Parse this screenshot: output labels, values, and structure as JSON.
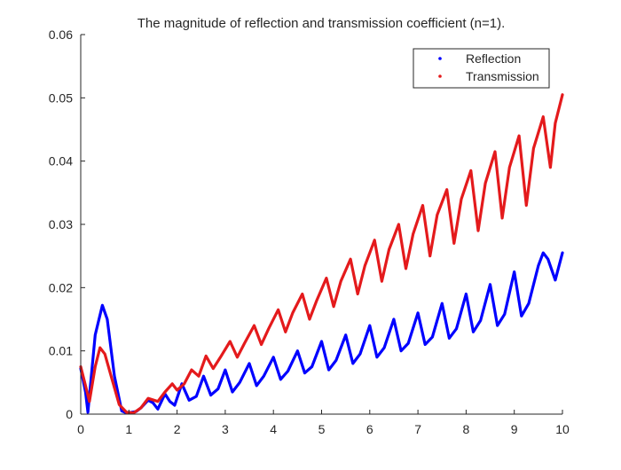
{
  "chart_data": {
    "type": "line",
    "title": "The magnitude of reflection and transmission coefficient (n=1).",
    "xlabel": "",
    "ylabel": "",
    "xlim": [
      0,
      10
    ],
    "ylim": [
      0,
      0.06
    ],
    "x_ticks": [
      "0",
      "1",
      "2",
      "3",
      "4",
      "5",
      "6",
      "7",
      "8",
      "9",
      "10"
    ],
    "y_ticks": [
      "0",
      "0.01",
      "0.02",
      "0.03",
      "0.04",
      "0.05",
      "0.06"
    ],
    "grid": false,
    "legend_position": "top-right",
    "series": [
      {
        "name": "Reflection",
        "color": "#0000ff",
        "points": [
          [
            0.0,
            0.0072
          ],
          [
            0.1,
            0.0035
          ],
          [
            0.15,
            0.0003
          ],
          [
            0.2,
            0.0045
          ],
          [
            0.3,
            0.0125
          ],
          [
            0.45,
            0.0172
          ],
          [
            0.55,
            0.015
          ],
          [
            0.7,
            0.006
          ],
          [
            0.85,
            0.0005
          ],
          [
            0.95,
            0.0002
          ],
          [
            1.05,
            0.0003
          ],
          [
            1.15,
            0.0004
          ],
          [
            1.25,
            0.001
          ],
          [
            1.4,
            0.0022
          ],
          [
            1.5,
            0.0018
          ],
          [
            1.6,
            0.0008
          ],
          [
            1.75,
            0.0032
          ],
          [
            1.85,
            0.002
          ],
          [
            1.95,
            0.0014
          ],
          [
            2.1,
            0.0048
          ],
          [
            2.25,
            0.0022
          ],
          [
            2.4,
            0.0028
          ],
          [
            2.55,
            0.006
          ],
          [
            2.7,
            0.003
          ],
          [
            2.85,
            0.004
          ],
          [
            3.0,
            0.007
          ],
          [
            3.15,
            0.0035
          ],
          [
            3.3,
            0.005
          ],
          [
            3.5,
            0.008
          ],
          [
            3.65,
            0.0045
          ],
          [
            3.8,
            0.006
          ],
          [
            4.0,
            0.009
          ],
          [
            4.15,
            0.0055
          ],
          [
            4.3,
            0.0068
          ],
          [
            4.5,
            0.01
          ],
          [
            4.65,
            0.0065
          ],
          [
            4.8,
            0.0075
          ],
          [
            5.0,
            0.0115
          ],
          [
            5.15,
            0.007
          ],
          [
            5.3,
            0.0085
          ],
          [
            5.5,
            0.0125
          ],
          [
            5.65,
            0.008
          ],
          [
            5.8,
            0.0095
          ],
          [
            6.0,
            0.014
          ],
          [
            6.15,
            0.009
          ],
          [
            6.3,
            0.0105
          ],
          [
            6.5,
            0.015
          ],
          [
            6.65,
            0.01
          ],
          [
            6.8,
            0.0112
          ],
          [
            7.0,
            0.016
          ],
          [
            7.15,
            0.011
          ],
          [
            7.3,
            0.0122
          ],
          [
            7.5,
            0.0175
          ],
          [
            7.65,
            0.012
          ],
          [
            7.8,
            0.0135
          ],
          [
            8.0,
            0.019
          ],
          [
            8.15,
            0.013
          ],
          [
            8.3,
            0.0148
          ],
          [
            8.5,
            0.0205
          ],
          [
            8.65,
            0.014
          ],
          [
            8.8,
            0.0158
          ],
          [
            9.0,
            0.0225
          ],
          [
            9.15,
            0.0155
          ],
          [
            9.3,
            0.0175
          ],
          [
            9.5,
            0.0235
          ],
          [
            9.6,
            0.0255
          ],
          [
            9.7,
            0.0245
          ],
          [
            9.85,
            0.0212
          ],
          [
            10.0,
            0.0255
          ]
        ]
      },
      {
        "name": "Transmission",
        "color": "#e41a1c",
        "points": [
          [
            0.0,
            0.0075
          ],
          [
            0.1,
            0.0045
          ],
          [
            0.18,
            0.002
          ],
          [
            0.3,
            0.0075
          ],
          [
            0.4,
            0.0105
          ],
          [
            0.5,
            0.0095
          ],
          [
            0.65,
            0.0055
          ],
          [
            0.8,
            0.0015
          ],
          [
            0.95,
            0.0003
          ],
          [
            1.1,
            0.0002
          ],
          [
            1.25,
            0.001
          ],
          [
            1.4,
            0.0025
          ],
          [
            1.6,
            0.002
          ],
          [
            1.75,
            0.0035
          ],
          [
            1.9,
            0.0048
          ],
          [
            2.0,
            0.0038
          ],
          [
            2.15,
            0.0048
          ],
          [
            2.3,
            0.007
          ],
          [
            2.45,
            0.006
          ],
          [
            2.6,
            0.0092
          ],
          [
            2.75,
            0.0072
          ],
          [
            2.9,
            0.009
          ],
          [
            3.1,
            0.0115
          ],
          [
            3.25,
            0.009
          ],
          [
            3.4,
            0.0112
          ],
          [
            3.6,
            0.014
          ],
          [
            3.75,
            0.011
          ],
          [
            3.9,
            0.0135
          ],
          [
            4.1,
            0.0165
          ],
          [
            4.25,
            0.013
          ],
          [
            4.4,
            0.016
          ],
          [
            4.6,
            0.019
          ],
          [
            4.75,
            0.015
          ],
          [
            4.9,
            0.018
          ],
          [
            5.1,
            0.0215
          ],
          [
            5.25,
            0.017
          ],
          [
            5.4,
            0.021
          ],
          [
            5.6,
            0.0245
          ],
          [
            5.75,
            0.019
          ],
          [
            5.9,
            0.0235
          ],
          [
            6.1,
            0.0275
          ],
          [
            6.25,
            0.021
          ],
          [
            6.4,
            0.026
          ],
          [
            6.6,
            0.03
          ],
          [
            6.75,
            0.023
          ],
          [
            6.9,
            0.0285
          ],
          [
            7.1,
            0.033
          ],
          [
            7.25,
            0.025
          ],
          [
            7.4,
            0.0315
          ],
          [
            7.6,
            0.0355
          ],
          [
            7.75,
            0.027
          ],
          [
            7.9,
            0.034
          ],
          [
            8.1,
            0.0385
          ],
          [
            8.25,
            0.029
          ],
          [
            8.4,
            0.0365
          ],
          [
            8.6,
            0.0415
          ],
          [
            8.75,
            0.031
          ],
          [
            8.9,
            0.039
          ],
          [
            9.1,
            0.044
          ],
          [
            9.25,
            0.033
          ],
          [
            9.4,
            0.042
          ],
          [
            9.6,
            0.047
          ],
          [
            9.75,
            0.039
          ],
          [
            9.85,
            0.046
          ],
          [
            10.0,
            0.0505
          ]
        ]
      }
    ]
  }
}
